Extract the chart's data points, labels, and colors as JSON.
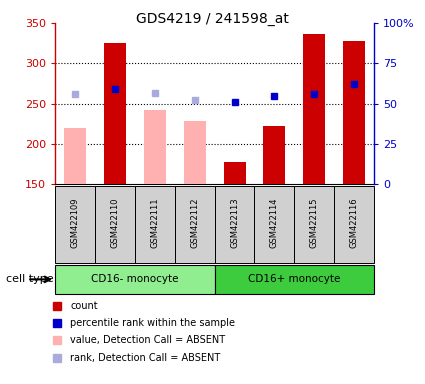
{
  "title": "GDS4219 / 241598_at",
  "samples": [
    "GSM422109",
    "GSM422110",
    "GSM422111",
    "GSM422112",
    "GSM422113",
    "GSM422114",
    "GSM422115",
    "GSM422116"
  ],
  "count_values": [
    null,
    325,
    null,
    null,
    178,
    222,
    336,
    328
  ],
  "absent_values": [
    220,
    null,
    242,
    228,
    null,
    null,
    null,
    null
  ],
  "percentile_rank": [
    null,
    268,
    null,
    null,
    252,
    260,
    262,
    274
  ],
  "absent_rank": [
    262,
    null,
    263,
    255,
    null,
    null,
    null,
    null
  ],
  "cell_types": [
    {
      "label": "CD16- monocyte",
      "samples": [
        0,
        1,
        2,
        3
      ],
      "color": "#90EE90"
    },
    {
      "label": "CD16+ monocyte",
      "samples": [
        4,
        5,
        6,
        7
      ],
      "color": "#3DCC3D"
    }
  ],
  "ylim_left": [
    150,
    350
  ],
  "ylim_right": [
    0,
    100
  ],
  "yticks_left": [
    150,
    200,
    250,
    300,
    350
  ],
  "yticks_right": [
    0,
    25,
    50,
    75,
    100
  ],
  "ytick_labels_right": [
    "0",
    "25",
    "50",
    "75",
    "100%"
  ],
  "bar_color_count": "#CC0000",
  "bar_color_absent": "#FFB0B0",
  "sq_color_rank": "#0000CC",
  "sq_color_absent_rank": "#AAAADD",
  "bar_width": 0.55,
  "bg_color": "#FFFFFF",
  "left_axis_color": "#CC0000",
  "right_axis_color": "#0000CC",
  "legend_items": [
    {
      "label": "count",
      "color": "#CC0000"
    },
    {
      "label": "percentile rank within the sample",
      "color": "#0000CC"
    },
    {
      "label": "value, Detection Call = ABSENT",
      "color": "#FFB0B0"
    },
    {
      "label": "rank, Detection Call = ABSENT",
      "color": "#AAAADD"
    }
  ],
  "cell_type_label": "cell type",
  "grid_yticks": [
    200,
    250,
    300
  ]
}
